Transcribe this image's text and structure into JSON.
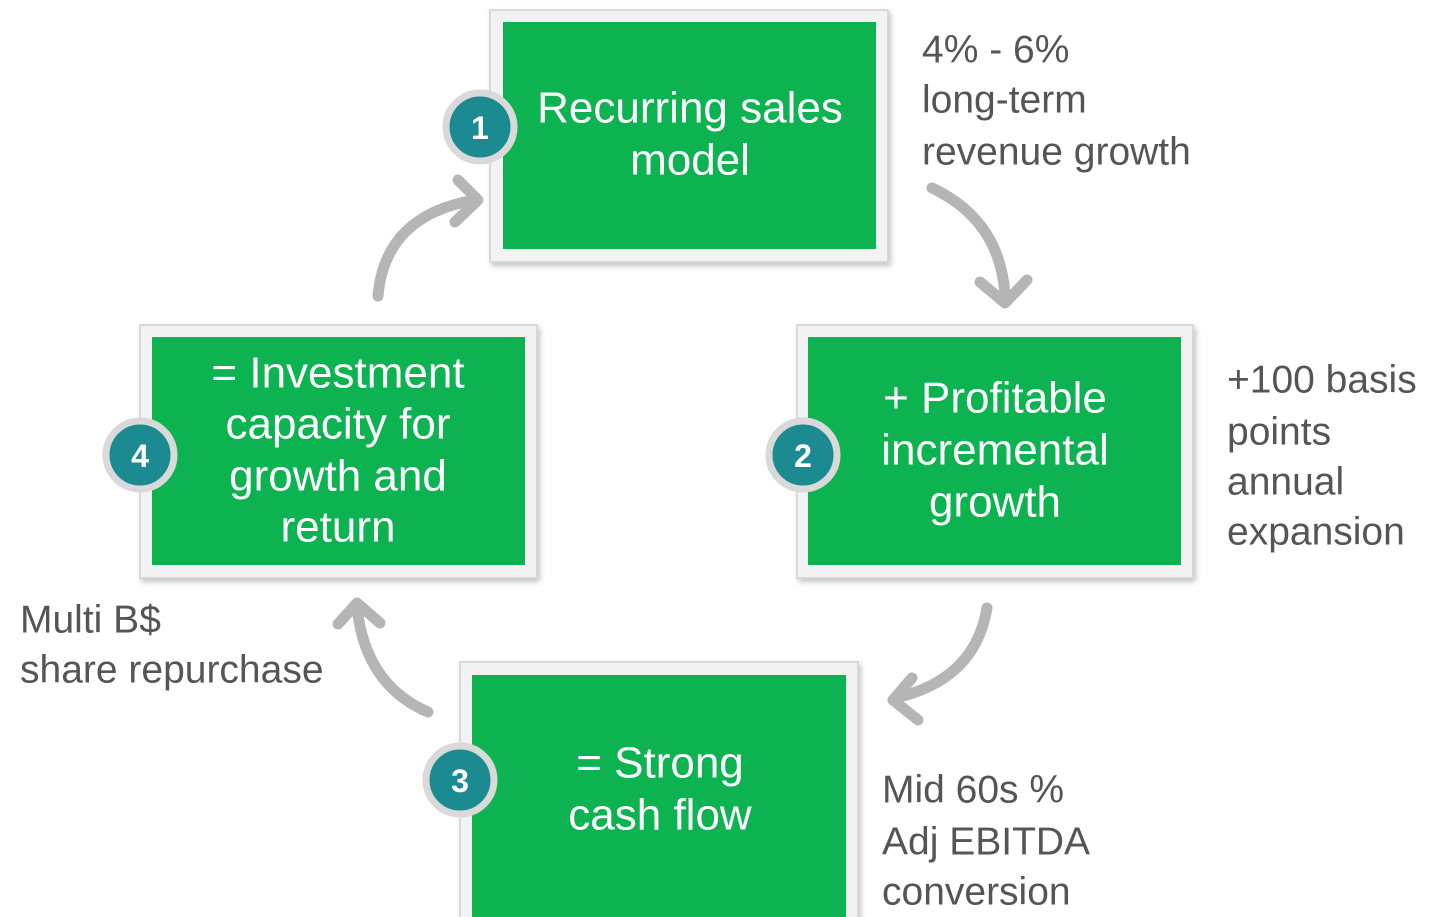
{
  "nodes": [
    {
      "number": "1",
      "lines": [
        "Recurring sales",
        "model"
      ],
      "note": [
        "4% - 6%",
        "long-term",
        "revenue growth"
      ]
    },
    {
      "number": "2",
      "lines": [
        "+ Profitable",
        "incremental",
        "growth"
      ],
      "note": [
        "+100 basis",
        "points",
        "annual",
        "expansion"
      ]
    },
    {
      "number": "3",
      "lines": [
        "= Strong",
        "cash flow"
      ],
      "note": [
        "Mid 60s %",
        "Adj EBITDA",
        "conversion"
      ]
    },
    {
      "number": "4",
      "lines": [
        "= Investment",
        "capacity for",
        "growth and",
        "return"
      ],
      "note": [
        "Multi B$",
        "share repurchase"
      ]
    }
  ]
}
